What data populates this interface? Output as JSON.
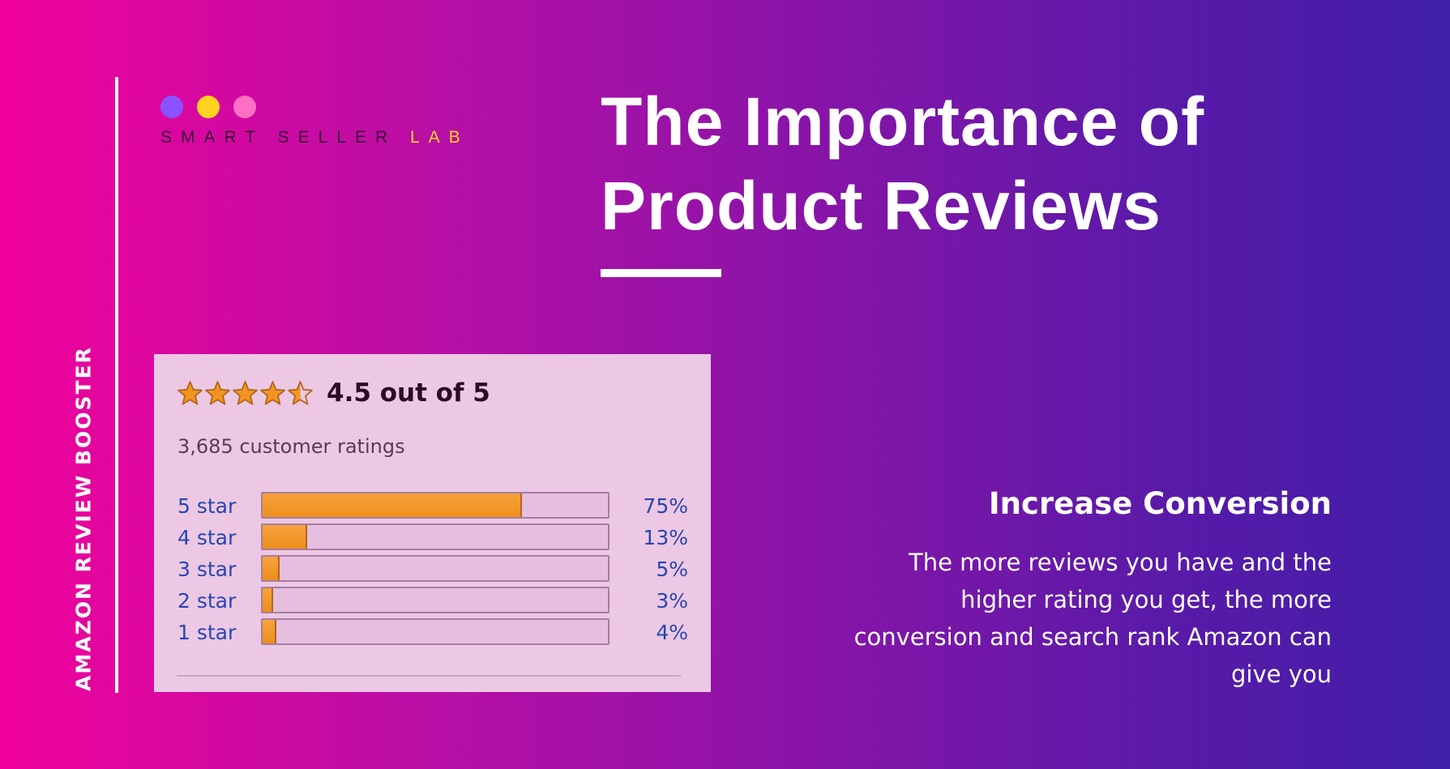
{
  "side_label": "AMAZON REVIEW BOOSTER",
  "logo": {
    "dot_colors": [
      "#8a52ff",
      "#ffd21f",
      "#ff6fc4"
    ],
    "brand_main": "SMART SELLER",
    "brand_accent": "LAB"
  },
  "title_lines": [
    "The Importance of",
    "Product Reviews"
  ],
  "rating_card": {
    "stars": 4.5,
    "summary": "4.5 out of 5",
    "count": "3,685 customer ratings",
    "rows": [
      {
        "label": "5 star",
        "pct": "75%",
        "value": 75
      },
      {
        "label": "4 star",
        "pct": "13%",
        "value": 13
      },
      {
        "label": "3 star",
        "pct": "5%",
        "value": 5
      },
      {
        "label": "2 star",
        "pct": "3%",
        "value": 3
      },
      {
        "label": "1 star",
        "pct": "4%",
        "value": 4
      }
    ]
  },
  "feature": {
    "heading": "Increase Conversion",
    "body": "The more reviews you have and the higher rating you get, the more conversion and search rank Amazon can give you"
  },
  "colors": {
    "accent_yellow": "#ffd21f",
    "bar_fill": "#f29520",
    "link_blue": "#2846b0"
  }
}
